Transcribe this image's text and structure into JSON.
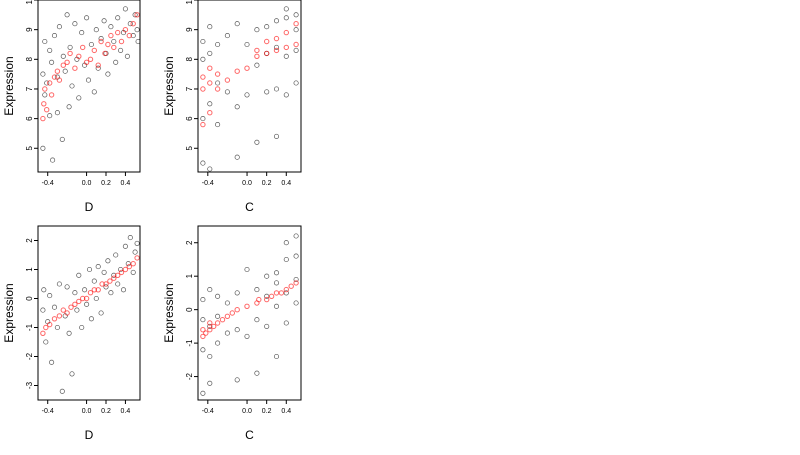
{
  "chart_data": [
    {
      "type": "scatter",
      "xlabel": "D",
      "ylabel": "Expression",
      "xlim": [
        -0.5,
        0.55
      ],
      "ylim": [
        4.2,
        10.0
      ],
      "xticks": [
        -0.4,
        0.0,
        0.2,
        0.4
      ],
      "xtick_labels": [
        "-0.4",
        "0.0",
        "0.2",
        "0.4"
      ],
      "yticks": [
        5,
        6,
        7,
        8,
        9,
        10
      ],
      "ytick_labels": [
        "5",
        "6",
        "7",
        "8",
        "9",
        "10"
      ],
      "grid": false,
      "series": [
        {
          "color": "#000000",
          "x": [
            -0.45,
            -0.45,
            -0.43,
            -0.43,
            -0.41,
            -0.38,
            -0.38,
            -0.36,
            -0.35,
            -0.33,
            -0.3,
            -0.3,
            -0.28,
            -0.25,
            -0.24,
            -0.22,
            -0.2,
            -0.18,
            -0.17,
            -0.15,
            -0.12,
            -0.1,
            -0.08,
            -0.05,
            -0.02,
            0.0,
            0.02,
            0.05,
            0.08,
            0.1,
            0.12,
            0.15,
            0.18,
            0.2,
            0.22,
            0.25,
            0.28,
            0.3,
            0.32,
            0.35,
            0.38,
            0.4,
            0.42,
            0.45,
            0.48,
            0.5,
            0.52,
            0.53
          ],
          "y": [
            5.0,
            7.5,
            6.8,
            8.6,
            7.2,
            8.3,
            6.1,
            7.9,
            4.6,
            8.8,
            6.2,
            7.4,
            9.1,
            5.3,
            8.1,
            7.6,
            9.5,
            6.4,
            8.4,
            7.1,
            9.2,
            8.0,
            6.7,
            8.9,
            7.8,
            9.4,
            7.3,
            8.5,
            6.9,
            9.0,
            7.7,
            8.7,
            9.3,
            8.2,
            7.5,
            9.1,
            8.6,
            7.9,
            9.4,
            8.3,
            8.9,
            9.7,
            8.1,
            9.2,
            8.8,
            9.5,
            9.0,
            8.6
          ]
        },
        {
          "color": "#ff0000",
          "x": [
            -0.45,
            -0.44,
            -0.43,
            -0.41,
            -0.38,
            -0.36,
            -0.33,
            -0.3,
            -0.28,
            -0.24,
            -0.2,
            -0.17,
            -0.12,
            -0.08,
            -0.04,
            0.0,
            0.04,
            0.08,
            0.12,
            0.15,
            0.19,
            0.22,
            0.25,
            0.28,
            0.32,
            0.36,
            0.4,
            0.44,
            0.48,
            0.52
          ],
          "y": [
            6.0,
            6.5,
            7.0,
            6.3,
            7.2,
            6.8,
            7.4,
            7.6,
            7.3,
            7.8,
            7.9,
            8.2,
            7.7,
            8.1,
            8.4,
            7.9,
            8.0,
            8.3,
            7.8,
            8.6,
            8.2,
            8.5,
            8.8,
            8.4,
            8.9,
            8.6,
            9.0,
            8.8,
            9.2,
            9.5
          ]
        }
      ]
    },
    {
      "type": "scatter",
      "xlabel": "C",
      "ylabel": "Expression",
      "xlim": [
        -0.5,
        0.55
      ],
      "ylim": [
        4.2,
        10.0
      ],
      "xticks": [
        -0.4,
        0.0,
        0.2,
        0.4
      ],
      "xtick_labels": [
        "-0.4",
        "0.0",
        "0.2",
        "0.4"
      ],
      "yticks": [
        5,
        6,
        7,
        8,
        9,
        10
      ],
      "ytick_labels": [
        "5",
        "6",
        "7",
        "8",
        "9",
        "10"
      ],
      "grid": false,
      "series": [
        {
          "color": "#000000",
          "x": [
            -0.45,
            -0.45,
            -0.45,
            -0.45,
            -0.38,
            -0.38,
            -0.38,
            -0.38,
            -0.3,
            -0.3,
            -0.3,
            -0.2,
            -0.2,
            -0.1,
            -0.1,
            -0.1,
            0.0,
            0.0,
            0.1,
            0.1,
            0.1,
            0.2,
            0.2,
            0.2,
            0.3,
            0.3,
            0.3,
            0.3,
            0.4,
            0.4,
            0.4,
            0.4,
            0.5,
            0.5,
            0.5,
            0.5
          ],
          "y": [
            4.5,
            6.0,
            8.0,
            8.6,
            4.3,
            6.5,
            8.2,
            9.1,
            5.8,
            7.2,
            8.5,
            6.9,
            8.8,
            4.7,
            6.4,
            9.2,
            6.8,
            8.5,
            5.2,
            7.8,
            9.0,
            6.9,
            8.2,
            9.1,
            5.4,
            7.0,
            8.4,
            9.3,
            6.8,
            8.1,
            9.4,
            9.7,
            7.2,
            8.3,
            9.0,
            9.5
          ]
        },
        {
          "color": "#ff0000",
          "x": [
            -0.45,
            -0.45,
            -0.45,
            -0.38,
            -0.38,
            -0.38,
            -0.3,
            -0.3,
            -0.2,
            -0.1,
            0.0,
            0.1,
            0.1,
            0.2,
            0.2,
            0.3,
            0.3,
            0.4,
            0.4,
            0.5,
            0.5
          ],
          "y": [
            5.8,
            7.0,
            7.4,
            6.2,
            7.2,
            7.7,
            7.0,
            7.5,
            7.3,
            7.6,
            7.7,
            8.1,
            8.3,
            8.2,
            8.6,
            8.3,
            8.7,
            8.4,
            8.9,
            8.5,
            9.2
          ]
        }
      ]
    },
    {
      "type": "scatter",
      "xlabel": "D",
      "ylabel": "Expression",
      "xlim": [
        -0.5,
        0.55
      ],
      "ylim": [
        -3.5,
        2.5
      ],
      "xticks": [
        -0.4,
        0.0,
        0.2,
        0.4
      ],
      "xtick_labels": [
        "-0.4",
        "0.0",
        "0.2",
        "0.4"
      ],
      "yticks": [
        -3,
        -2,
        -1,
        0,
        1,
        2
      ],
      "ytick_labels": [
        "-3",
        "-2",
        "-1",
        "0",
        "1",
        "2"
      ],
      "grid": false,
      "series": [
        {
          "color": "#000000",
          "x": [
            -0.45,
            -0.44,
            -0.42,
            -0.4,
            -0.38,
            -0.36,
            -0.33,
            -0.3,
            -0.28,
            -0.25,
            -0.22,
            -0.2,
            -0.18,
            -0.15,
            -0.12,
            -0.1,
            -0.08,
            -0.05,
            -0.02,
            0.0,
            0.03,
            0.05,
            0.08,
            0.1,
            0.12,
            0.15,
            0.18,
            0.2,
            0.22,
            0.25,
            0.28,
            0.3,
            0.32,
            0.35,
            0.38,
            0.4,
            0.43,
            0.45,
            0.48,
            0.5,
            0.52
          ],
          "y": [
            -0.4,
            0.3,
            -1.5,
            -0.8,
            0.1,
            -2.2,
            -0.3,
            -1.0,
            0.5,
            -3.2,
            -0.6,
            0.4,
            -1.2,
            -2.6,
            0.2,
            -0.4,
            0.8,
            -1.0,
            0.3,
            -0.2,
            1.0,
            -0.7,
            0.6,
            0.0,
            1.1,
            -0.5,
            0.9,
            0.4,
            1.3,
            0.2,
            0.8,
            1.5,
            0.5,
            1.0,
            0.3,
            1.8,
            1.2,
            2.1,
            0.9,
            1.6,
            1.9
          ]
        },
        {
          "color": "#ff0000",
          "x": [
            -0.45,
            -0.42,
            -0.38,
            -0.33,
            -0.28,
            -0.24,
            -0.2,
            -0.16,
            -0.12,
            -0.08,
            -0.04,
            0.0,
            0.04,
            0.08,
            0.12,
            0.16,
            0.2,
            0.24,
            0.28,
            0.32,
            0.36,
            0.4,
            0.44,
            0.48,
            0.52
          ],
          "y": [
            -1.2,
            -1.0,
            -0.9,
            -0.7,
            -0.6,
            -0.4,
            -0.5,
            -0.3,
            -0.2,
            -0.1,
            0.0,
            0.0,
            0.2,
            0.3,
            0.3,
            0.5,
            0.5,
            0.6,
            0.7,
            0.8,
            0.9,
            1.0,
            1.1,
            1.2,
            1.4
          ]
        }
      ]
    },
    {
      "type": "scatter",
      "xlabel": "C",
      "ylabel": "Expression",
      "xlim": [
        -0.5,
        0.55
      ],
      "ylim": [
        -2.7,
        2.5
      ],
      "xticks": [
        -0.4,
        0.0,
        0.2,
        0.4
      ],
      "xtick_labels": [
        "-0.4",
        "0.0",
        "0.2",
        "0.4"
      ],
      "yticks": [
        -2,
        -1,
        0,
        1,
        2
      ],
      "ytick_labels": [
        "-2",
        "-1",
        "0",
        "1",
        "2"
      ],
      "grid": false,
      "series": [
        {
          "color": "#000000",
          "x": [
            -0.45,
            -0.45,
            -0.45,
            -0.45,
            -0.38,
            -0.38,
            -0.38,
            -0.38,
            -0.3,
            -0.3,
            -0.3,
            -0.2,
            -0.2,
            -0.1,
            -0.1,
            -0.1,
            0.0,
            0.0,
            0.1,
            0.1,
            0.1,
            0.2,
            0.2,
            0.2,
            0.3,
            0.3,
            0.3,
            0.3,
            0.4,
            0.4,
            0.4,
            0.4,
            0.5,
            0.5,
            0.5,
            0.5
          ],
          "y": [
            -2.5,
            -1.2,
            -0.3,
            0.3,
            -2.2,
            -1.4,
            -0.5,
            0.6,
            -1.0,
            -0.2,
            0.4,
            -0.7,
            0.2,
            -2.1,
            -0.6,
            0.5,
            -0.8,
            1.2,
            -1.9,
            -0.3,
            0.6,
            -0.5,
            0.4,
            1.0,
            -1.4,
            0.1,
            0.8,
            1.1,
            -0.4,
            0.5,
            1.5,
            2.0,
            0.2,
            0.9,
            1.6,
            2.2
          ]
        },
        {
          "color": "#ff0000",
          "x": [
            -0.45,
            -0.45,
            -0.42,
            -0.38,
            -0.38,
            -0.34,
            -0.3,
            -0.25,
            -0.2,
            -0.15,
            -0.1,
            0.0,
            0.1,
            0.12,
            0.2,
            0.25,
            0.3,
            0.35,
            0.4,
            0.45,
            0.5
          ],
          "y": [
            -0.8,
            -0.6,
            -0.7,
            -0.6,
            -0.4,
            -0.5,
            -0.4,
            -0.3,
            -0.2,
            -0.1,
            0.0,
            0.1,
            0.2,
            0.3,
            0.3,
            0.4,
            0.5,
            0.5,
            0.6,
            0.7,
            0.8
          ]
        }
      ]
    }
  ]
}
